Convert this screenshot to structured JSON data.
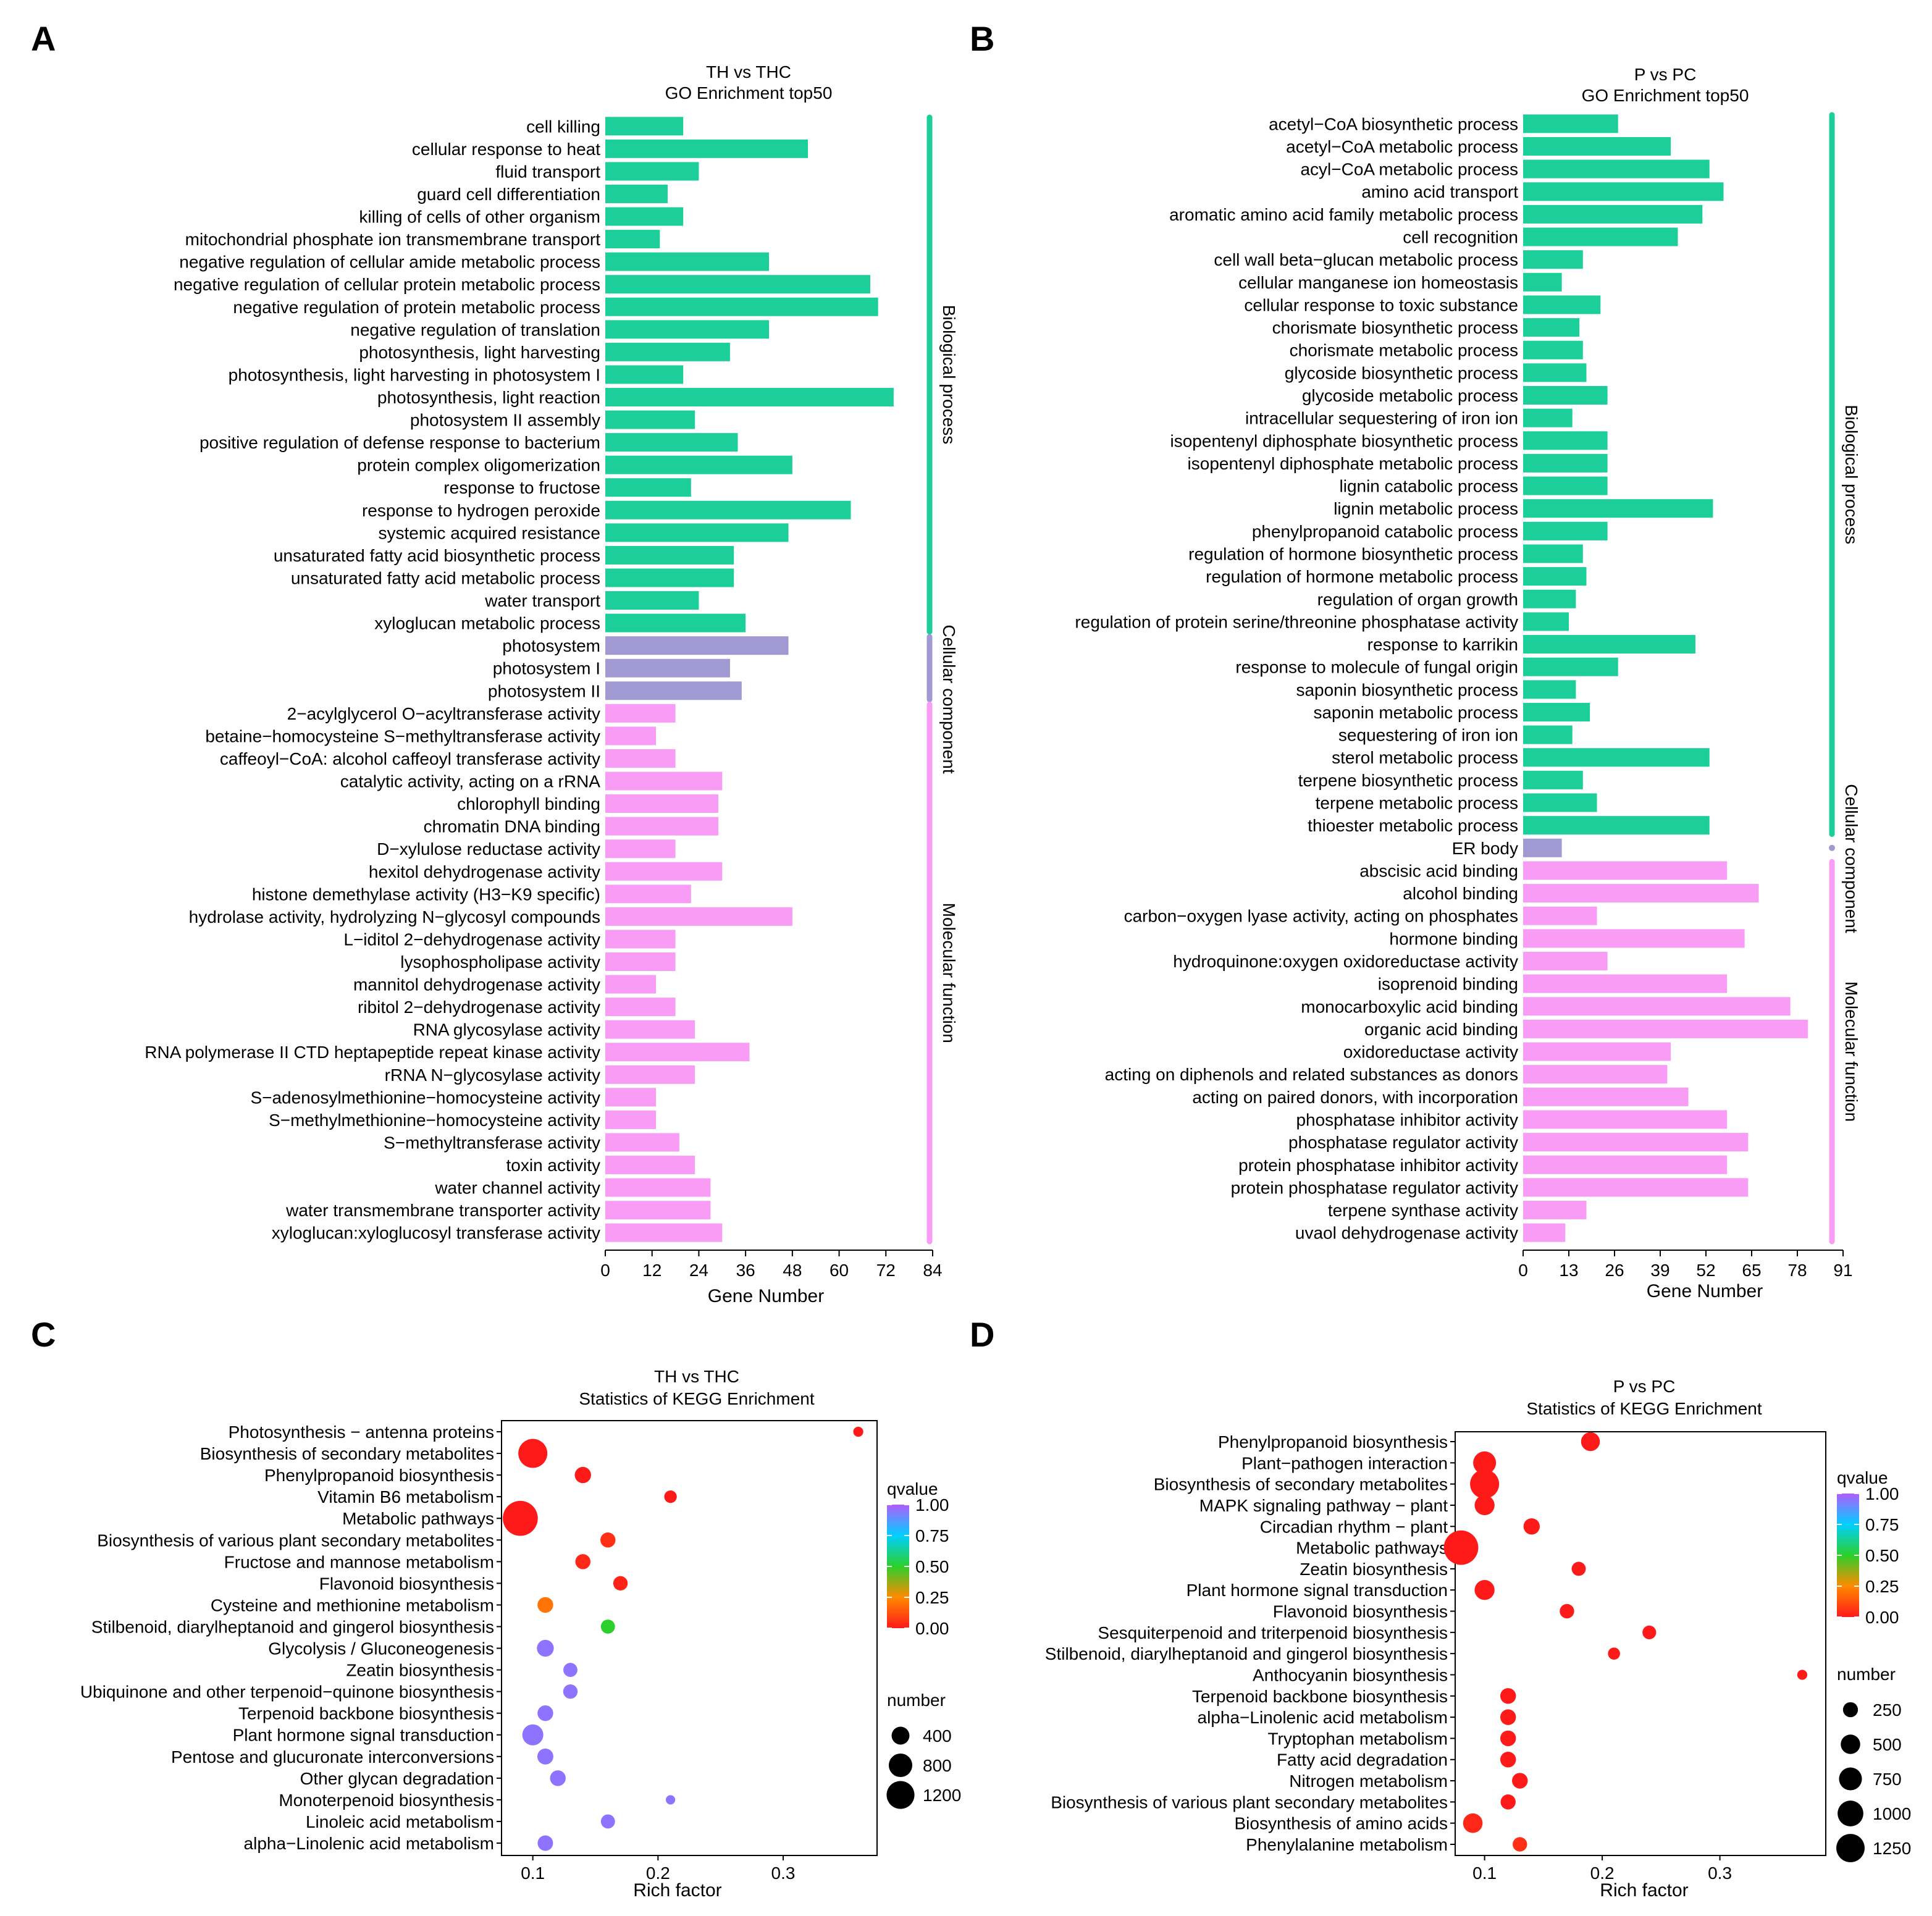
{
  "figure": {
    "panel_letters": [
      "A",
      "B",
      "C",
      "D"
    ]
  },
  "colors": {
    "biological_process": "#1ccf9a",
    "cellular_component": "#a19ad2",
    "molecular_function": "#f99cf5",
    "scatter_outline": "#000000",
    "qvalue_scale": [
      "#ff1a1a",
      "#ff8a00",
      "#2bd02b",
      "#00cfff",
      "#b05cff"
    ]
  },
  "chart_data": [
    {
      "panel": "A",
      "type": "bar",
      "title": "TH vs THC",
      "subtitle": "GO Enrichment top50",
      "xlabel": "Gene Number",
      "ylabel": "",
      "xlim": [
        0,
        84
      ],
      "xticks": [
        0,
        12,
        24,
        36,
        48,
        60,
        72,
        84
      ],
      "groups": [
        {
          "name": "Biological process",
          "key": "biological_process",
          "count": 23
        },
        {
          "name": "Cellular component",
          "key": "cellular_component",
          "count": 3
        },
        {
          "name": "Molecular function",
          "key": "molecular_function",
          "count": 24
        }
      ],
      "categories": [
        "cell killing",
        "cellular response to heat",
        "fluid transport",
        "guard cell differentiation",
        "killing of cells of other organism",
        "mitochondrial phosphate ion transmembrane transport",
        "negative regulation of cellular amide metabolic process",
        "negative regulation of cellular protein metabolic process",
        "negative regulation of protein metabolic process",
        "negative regulation of translation",
        "photosynthesis, light harvesting",
        "photosynthesis, light harvesting in photosystem I",
        "photosynthesis, light reaction",
        "photosystem II assembly",
        "positive regulation of defense response to bacterium",
        "protein complex oligomerization",
        "response to fructose",
        "response to hydrogen peroxide",
        "systemic acquired resistance",
        "unsaturated fatty acid biosynthetic process",
        "unsaturated fatty acid metabolic process",
        "water transport",
        "xyloglucan metabolic process",
        "photosystem",
        "photosystem I",
        "photosystem II",
        "2−acylglycerol O−acyltransferase activity",
        "betaine−homocysteine S−methyltransferase activity",
        "caffeoyl−CoA: alcohol caffeoyl transferase activity",
        "catalytic activity, acting on a rRNA",
        "chlorophyll binding",
        "chromatin DNA binding",
        "D−xylulose reductase activity",
        "hexitol dehydrogenase activity",
        "histone demethylase activity (H3−K9 specific)",
        "hydrolase activity, hydrolyzing N−glycosyl compounds",
        "L−iditol 2−dehydrogenase activity",
        "lysophospholipase activity",
        "mannitol dehydrogenase activity",
        "ribitol 2−dehydrogenase activity",
        "RNA glycosylase activity",
        "RNA polymerase II CTD heptapeptide repeat kinase activity",
        "rRNA N−glycosylase activity",
        "S−adenosylmethionine−homocysteine activity",
        "S−methylmethionine−homocysteine activity",
        "S−methyltransferase activity",
        "toxin activity",
        "water channel activity",
        "water transmembrane transporter activity",
        "xyloglucan:xyloglucosyl transferase activity"
      ],
      "values": [
        20,
        52,
        24,
        16,
        20,
        14,
        42,
        68,
        70,
        42,
        32,
        20,
        74,
        23,
        34,
        48,
        22,
        63,
        47,
        33,
        33,
        24,
        36,
        47,
        32,
        35,
        18,
        13,
        18,
        30,
        29,
        29,
        18,
        30,
        22,
        48,
        18,
        18,
        13,
        18,
        23,
        37,
        23,
        13,
        13,
        19,
        23,
        27,
        27,
        30
      ]
    },
    {
      "panel": "B",
      "type": "bar",
      "title": "P vs PC",
      "subtitle": "GO Enrichment top50",
      "xlabel": "Gene Number",
      "ylabel": "",
      "xlim": [
        0,
        91
      ],
      "xticks": [
        0,
        13,
        26,
        39,
        52,
        65,
        78,
        91
      ],
      "groups": [
        {
          "name": "Biological process",
          "key": "biological_process",
          "count": 32
        },
        {
          "name": "Cellular component",
          "key": "cellular_component",
          "count": 1
        },
        {
          "name": "Molecular function",
          "key": "molecular_function",
          "count": 17
        }
      ],
      "categories": [
        "acetyl−CoA biosynthetic process",
        "acetyl−CoA metabolic process",
        "acyl−CoA metabolic process",
        "amino acid transport",
        "aromatic amino acid family metabolic process",
        "cell recognition",
        "cell wall beta−glucan metabolic process",
        "cellular manganese ion homeostasis",
        "cellular response to toxic substance",
        "chorismate biosynthetic process",
        "chorismate metabolic process",
        "glycoside biosynthetic process",
        "glycoside metabolic process",
        "intracellular sequestering of iron ion",
        "isopentenyl diphosphate biosynthetic process",
        "isopentenyl diphosphate metabolic process",
        "lignin catabolic process",
        "lignin metabolic process",
        "phenylpropanoid catabolic process",
        "regulation of hormone biosynthetic process",
        "regulation of hormone metabolic process",
        "regulation of organ growth",
        "regulation of protein serine/threonine phosphatase activity",
        "response to karrikin",
        "response to molecule of fungal origin",
        "saponin biosynthetic process",
        "saponin metabolic process",
        "sequestering of iron ion",
        "sterol metabolic process",
        "terpene biosynthetic process",
        "terpene metabolic process",
        "thioester metabolic process",
        "ER body",
        "abscisic acid binding",
        "alcohol binding",
        "carbon−oxygen lyase activity, acting on phosphates",
        "hormone binding",
        "hydroquinone:oxygen oxidoreductase activity",
        "isoprenoid binding",
        "monocarboxylic acid binding",
        "organic acid binding",
        "oxidoreductase activity",
        "acting on diphenols and related substances as donors",
        "acting on paired donors, with incorporation",
        "phosphatase inhibitor activity",
        "phosphatase regulator activity",
        "protein phosphatase inhibitor activity",
        "protein phosphatase regulator activity",
        "terpene synthase activity",
        "uvaol dehydrogenase activity"
      ],
      "values": [
        27,
        42,
        53,
        57,
        51,
        44,
        17,
        11,
        22,
        16,
        17,
        18,
        24,
        14,
        24,
        24,
        24,
        54,
        24,
        17,
        18,
        15,
        13,
        49,
        27,
        15,
        19,
        14,
        53,
        17,
        21,
        53,
        11,
        58,
        67,
        21,
        63,
        24,
        58,
        76,
        81,
        42,
        41,
        47,
        58,
        64,
        58,
        64,
        18,
        12
      ]
    },
    {
      "panel": "C",
      "type": "scatter",
      "title": "TH vs THC",
      "subtitle": "Statistics of KEGG Enrichment",
      "xlabel": "Rich factor",
      "ylabel": "",
      "xlim": [
        0.075,
        0.375
      ],
      "xticks": [
        0.1,
        0.2,
        0.3
      ],
      "xtick_labels": [
        "0.1",
        "0.2",
        "0.3"
      ],
      "legend_color": {
        "title": "qvalue",
        "ticks": [
          "1.00",
          "0.75",
          "0.50",
          "0.25",
          "0.00"
        ]
      },
      "legend_size": {
        "title": "number",
        "values": [
          400,
          800,
          1200
        ],
        "labels": [
          "400",
          "800",
          "1200"
        ]
      },
      "categories": [
        "Photosynthesis − antenna proteins",
        "Biosynthesis of secondary metabolites",
        "Phenylpropanoid biosynthesis",
        "Vitamin B6 metabolism",
        "Metabolic pathways",
        "Biosynthesis of various plant secondary metabolites",
        "Fructose and mannose metabolism",
        "Flavonoid biosynthesis",
        "Cysteine and methionine metabolism",
        "Stilbenoid, diarylheptanoid and gingerol biosynthesis",
        "Glycolysis / Gluconeogenesis",
        "Zeatin biosynthesis",
        "Ubiquinone and other terpenoid−quinone biosynthesis",
        "Terpenoid backbone biosynthesis",
        "Plant hormone signal transduction",
        "Pentose and glucuronate interconversions",
        "Other glycan degradation",
        "Monoterpenoid biosynthesis",
        "Linoleic acid metabolism",
        "alpha−Linolenic acid metabolism"
      ],
      "x": [
        0.36,
        0.1,
        0.14,
        0.21,
        0.09,
        0.16,
        0.14,
        0.17,
        0.11,
        0.16,
        0.11,
        0.13,
        0.13,
        0.11,
        0.1,
        0.11,
        0.12,
        0.21,
        0.16,
        0.11
      ],
      "number": [
        40,
        900,
        200,
        90,
        1400,
        160,
        160,
        140,
        180,
        130,
        220,
        130,
        140,
        180,
        400,
        190,
        180,
        30,
        130,
        170
      ],
      "qvalue": [
        0.0,
        0.0,
        0.0,
        0.0,
        0.0,
        0.05,
        0.03,
        0.02,
        0.2,
        0.5,
        0.95,
        0.95,
        0.95,
        0.95,
        0.95,
        0.95,
        0.95,
        0.95,
        0.95,
        0.95
      ]
    },
    {
      "panel": "D",
      "type": "scatter",
      "title": "P vs PC",
      "subtitle": "Statistics of KEGG Enrichment",
      "xlabel": "Rich factor",
      "ylabel": "",
      "xlim": [
        0.075,
        0.39
      ],
      "xticks": [
        0.1,
        0.2,
        0.3
      ],
      "xtick_labels": [
        "0.1",
        "0.2",
        "0.3"
      ],
      "legend_color": {
        "title": "qvalue",
        "ticks": [
          "1.00",
          "0.75",
          "0.50",
          "0.25",
          "0.00"
        ]
      },
      "legend_size": {
        "title": "number",
        "values": [
          250,
          500,
          750,
          1000,
          1250
        ],
        "labels": [
          "250",
          "500",
          "750",
          "1000",
          "1250"
        ]
      },
      "categories": [
        "Phenylpropanoid biosynthesis",
        "Plant−pathogen interaction",
        "Biosynthesis of secondary metabolites",
        "MAPK signaling pathway − plant",
        "Circadian rhythm − plant",
        "Metabolic pathways",
        "Zeatin biosynthesis",
        "Plant hormone signal transduction",
        "Flavonoid biosynthesis",
        "Sesquiterpenoid and triterpenoid biosynthesis",
        "Stilbenoid, diarylheptanoid and gingerol biosynthesis",
        "Anthocyanin biosynthesis",
        "Terpenoid backbone biosynthesis",
        "alpha−Linolenic acid metabolism",
        "Tryptophan metabolism",
        "Fatty acid degradation",
        "Nitrogen metabolism",
        "Biosynthesis of various plant secondary metabolites",
        "Biosynthesis of amino acids",
        "Phenylalanine metabolism"
      ],
      "x": [
        0.19,
        0.1,
        0.1,
        0.1,
        0.14,
        0.08,
        0.18,
        0.1,
        0.17,
        0.24,
        0.21,
        0.37,
        0.12,
        0.12,
        0.12,
        0.12,
        0.13,
        0.12,
        0.09,
        0.13
      ],
      "number": [
        300,
        500,
        900,
        350,
        200,
        1350,
        130,
        350,
        140,
        120,
        80,
        40,
        180,
        180,
        180,
        180,
        180,
        160,
        330,
        140
      ],
      "qvalue": [
        0.0,
        0.0,
        0.0,
        0.0,
        0.0,
        0.0,
        0.0,
        0.0,
        0.0,
        0.0,
        0.0,
        0.0,
        0.0,
        0.0,
        0.0,
        0.0,
        0.0,
        0.0,
        0.03,
        0.05
      ]
    }
  ]
}
